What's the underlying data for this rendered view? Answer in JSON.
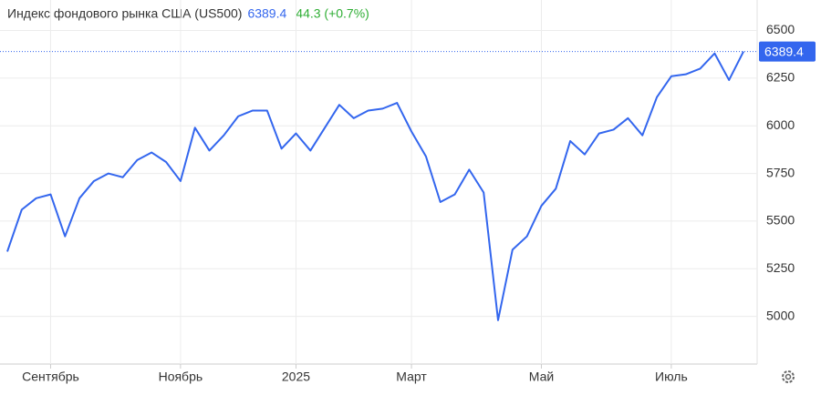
{
  "chart_data": {
    "type": "line",
    "title": "Индекс фондового рынка США (US500)",
    "last_price": 6389.4,
    "change_label": "44.3 (+0.7%)",
    "categories": [
      null,
      null,
      null,
      "Сентябрь",
      null,
      null,
      null,
      null,
      null,
      null,
      null,
      null,
      "Ноябрь",
      null,
      null,
      null,
      null,
      null,
      null,
      null,
      "2025",
      null,
      null,
      null,
      null,
      null,
      null,
      null,
      "Март",
      null,
      null,
      null,
      null,
      null,
      null,
      null,
      null,
      "Май",
      null,
      null,
      null,
      null,
      null,
      null,
      null,
      null,
      "Июль",
      null,
      null,
      null,
      null,
      null
    ],
    "series": [
      {
        "color": "#3366ee",
        "values": [
          5340,
          5560,
          5620,
          5640,
          5420,
          5620,
          5710,
          5750,
          5730,
          5820,
          5860,
          5810,
          5710,
          5990,
          5870,
          5950,
          6050,
          6080,
          6080,
          5880,
          5960,
          5870,
          5990,
          6110,
          6040,
          6080,
          6090,
          6120,
          5970,
          5840,
          5600,
          5640,
          5770,
          5650,
          4980,
          5350,
          5420,
          5580,
          5670,
          5920,
          5850,
          5960,
          5980,
          6040,
          5950,
          6150,
          6260,
          6270,
          6300,
          6380,
          6240,
          6389.4
        ]
      }
    ],
    "ylim": [
      4750,
      6660
    ],
    "yticks": [
      5000,
      5250,
      5500,
      5750,
      6000,
      6250,
      6500
    ],
    "grid": true
  }
}
